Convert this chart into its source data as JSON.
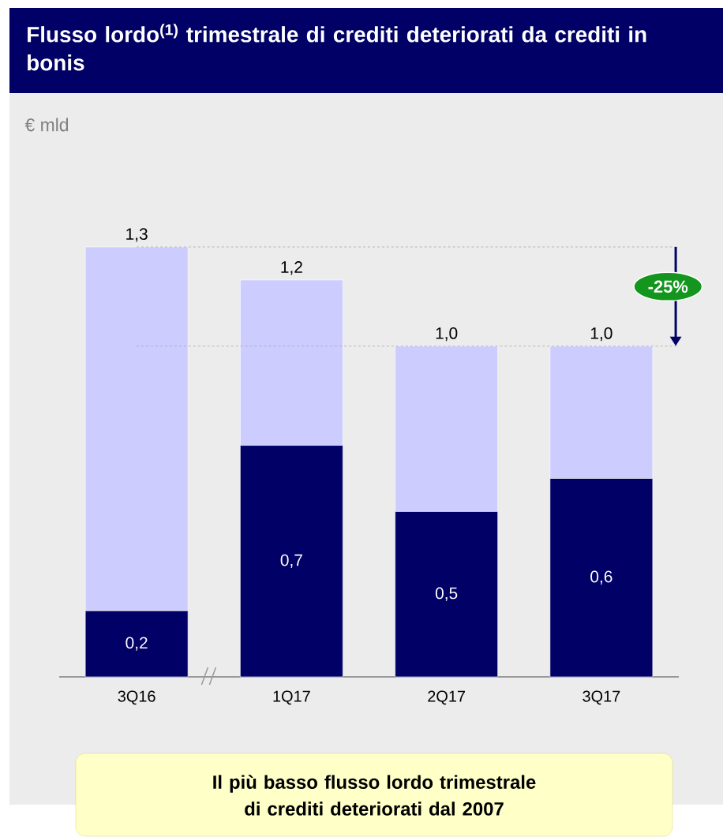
{
  "chart_data": {
    "type": "bar",
    "stacked": true,
    "title": "Flusso lordo$^{(1)}$ trimestrale di crediti deteriorati da crediti in bonis",
    "categories": [
      "3Q16",
      "1Q17",
      "2Q17",
      "3Q17"
    ],
    "series": [
      {
        "color": "#000066",
        "values": [
          0.2,
          0.7,
          0.5,
          0.6
        ],
        "value_labels": [
          "0,2",
          "0,7",
          "0,5",
          "0,6"
        ]
      },
      {
        "color": "#ccccff",
        "values": [
          1.1,
          0.5,
          0.5,
          0.4
        ]
      }
    ],
    "totals": [
      "1,3",
      "1,2",
      "1,0",
      "1,0"
    ],
    "ylim": [
      0,
      1.3
    ],
    "tick_labels": "x",
    "ref_lines": [
      {
        "axis": "y",
        "value": 1.3,
        "color": "#aaaaaa",
        "line_style": "dashed"
      },
      {
        "axis": "y",
        "value": 1.0,
        "color": "#aaaaaa",
        "line_style": "dashed"
      }
    ],
    "annotations": [
      "€ mld",
      "-25%",
      "Il più basso flusso lordo trimestrale di crediti deteriorati dal 2007"
    ]
  }
}
